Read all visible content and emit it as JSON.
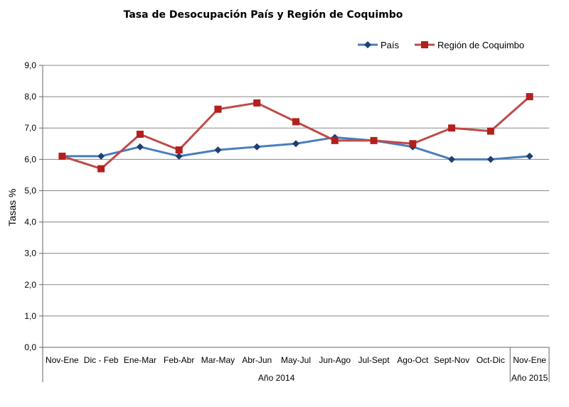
{
  "chart_data": {
    "type": "line",
    "title": "Tasa de Desocupación País y Región de Coquimbo",
    "ylabel": "Tasas %",
    "ylim": [
      0,
      9
    ],
    "yticks": [
      "0,0",
      "1,0",
      "2,0",
      "3,0",
      "4,0",
      "5,0",
      "6,0",
      "7,0",
      "8,0",
      "9,0"
    ],
    "grid": true,
    "legend_position": "top-right",
    "categories": [
      "Nov-Ene",
      "Dic - Feb",
      "Ene-Mar",
      "Feb-Abr",
      "Mar-May",
      "Abr-Jun",
      "May-Jul",
      "Jun-Ago",
      "Jul-Sept",
      "Ago-Oct",
      "Sept-Nov",
      "Oct-Dic",
      "Nov-Ene"
    ],
    "groups": [
      {
        "label": "Año 2014",
        "count": 12
      },
      {
        "label": "Año 2015",
        "count": 1
      }
    ],
    "series": [
      {
        "name": "País",
        "color": "#4a7ebb",
        "marker": "diamond",
        "values": [
          6.1,
          6.1,
          6.4,
          6.1,
          6.3,
          6.4,
          6.5,
          6.7,
          6.6,
          6.4,
          6.0,
          6.0,
          6.1
        ]
      },
      {
        "name": "Región de Coquimbo",
        "color": "#be4b48",
        "marker": "square",
        "values": [
          6.1,
          5.7,
          6.8,
          6.3,
          7.6,
          7.8,
          7.2,
          6.6,
          6.6,
          6.5,
          7.0,
          6.9,
          8.0
        ]
      }
    ]
  }
}
